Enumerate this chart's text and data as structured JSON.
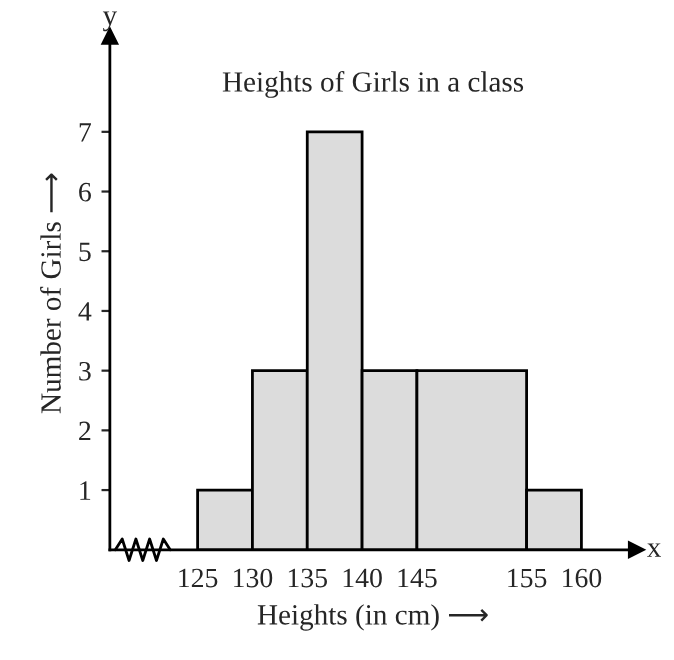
{
  "chart_data": {
    "type": "histogram",
    "title": "Heights of Girls in a class",
    "xlabel": "Heights (in cm) ⟶",
    "ylabel": "Number of Girls ⟶",
    "bins": [
      125,
      130,
      135,
      140,
      145,
      155,
      160
    ],
    "values": [
      1,
      3,
      7,
      3,
      3,
      1
    ],
    "color": "#dcdcdc",
    "xlim": [
      117,
      165
    ],
    "ylim": [
      0,
      8.6
    ],
    "xticks": [
      125,
      130,
      135,
      140,
      145,
      155,
      160
    ],
    "yticks": [
      1,
      2,
      3,
      4,
      5,
      6,
      7
    ],
    "annotations": [
      "x",
      "y"
    ],
    "grid": false,
    "legend": false
  }
}
